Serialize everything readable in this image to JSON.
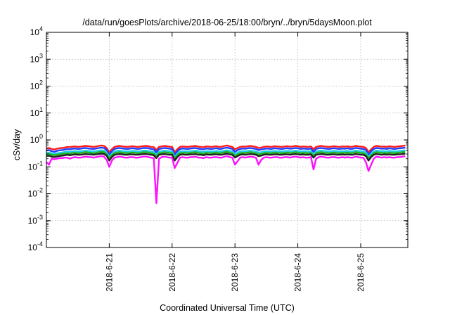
{
  "chart_data": {
    "type": "line",
    "title": "/data/run/goesPlots/archive/2018-06-25/18:00/bryn/../bryn/5daysMoon.plot",
    "xlabel": "Coordinated Universal Time (UTC)",
    "ylabel": "cSv/day",
    "yscale": "log",
    "ylim": [
      0.0001,
      10000
    ],
    "y_tick_labels": [
      {
        "base": "10",
        "exp": "-4"
      },
      {
        "base": "10",
        "exp": "-3"
      },
      {
        "base": "10",
        "exp": "-2"
      },
      {
        "base": "10",
        "exp": "-1"
      },
      {
        "base": "10",
        "exp": "0"
      },
      {
        "base": "10",
        "exp": "1"
      },
      {
        "base": "10",
        "exp": "2"
      },
      {
        "base": "10",
        "exp": "3"
      },
      {
        "base": "10",
        "exp": "4"
      }
    ],
    "xlim": [
      "2018-06-20 00:00",
      "2018-06-25 18:00"
    ],
    "x_tick_labels": [
      "2018-6-21",
      "2018-6-22",
      "2018-6-23",
      "2018-6-24",
      "2018-6-25"
    ],
    "grid": true,
    "legend": "none",
    "sampling_hours": 1,
    "series": [
      {
        "color": "#ff1a1a",
        "mean": 0.52,
        "values": [
          0.48,
          0.5,
          0.46,
          0.44,
          0.47,
          0.49,
          0.5,
          0.52,
          0.55,
          0.54,
          0.56,
          0.57,
          0.55,
          0.56,
          0.58,
          0.6,
          0.58,
          0.57,
          0.55,
          0.57,
          0.6,
          0.62,
          0.6,
          0.5,
          0.35,
          0.45,
          0.55,
          0.58,
          0.6,
          0.57,
          0.56,
          0.55,
          0.57,
          0.58,
          0.56,
          0.55,
          0.57,
          0.59,
          0.6,
          0.58,
          0.55,
          0.54,
          0.42,
          0.55,
          0.57,
          0.6,
          0.58,
          0.56,
          0.55,
          0.35,
          0.45,
          0.55,
          0.57,
          0.56,
          0.55,
          0.57,
          0.58,
          0.6,
          0.56,
          0.55,
          0.54,
          0.57,
          0.56,
          0.55,
          0.57,
          0.58,
          0.55,
          0.56,
          0.6,
          0.62,
          0.58,
          0.55,
          0.45,
          0.5,
          0.55,
          0.57,
          0.56,
          0.58,
          0.6,
          0.57,
          0.55,
          0.5,
          0.52,
          0.55,
          0.57,
          0.56,
          0.55,
          0.58,
          0.57,
          0.56,
          0.55,
          0.57,
          0.58,
          0.56,
          0.57,
          0.6,
          0.58,
          0.55,
          0.57,
          0.56,
          0.55,
          0.57,
          0.45,
          0.55,
          0.58,
          0.6,
          0.57,
          0.56,
          0.55,
          0.57,
          0.58,
          0.56,
          0.55,
          0.57,
          0.56,
          0.58,
          0.55,
          0.56,
          0.6,
          0.58,
          0.56,
          0.55,
          0.5,
          0.35,
          0.45,
          0.55,
          0.6,
          0.58,
          0.56,
          0.57,
          0.55,
          0.58,
          0.56,
          0.55,
          0.57,
          0.58,
          0.6,
          0.62
        ]
      },
      {
        "color": "#1f3cff",
        "mean": 0.42,
        "values": [
          0.4,
          0.42,
          0.38,
          0.36,
          0.39,
          0.41,
          0.42,
          0.44,
          0.46,
          0.45,
          0.47,
          0.48,
          0.46,
          0.47,
          0.49,
          0.5,
          0.48,
          0.47,
          0.46,
          0.48,
          0.5,
          0.52,
          0.5,
          0.42,
          0.28,
          0.38,
          0.46,
          0.49,
          0.5,
          0.48,
          0.47,
          0.46,
          0.48,
          0.49,
          0.47,
          0.46,
          0.48,
          0.5,
          0.5,
          0.49,
          0.46,
          0.45,
          0.34,
          0.46,
          0.48,
          0.5,
          0.49,
          0.47,
          0.46,
          0.28,
          0.38,
          0.46,
          0.48,
          0.47,
          0.46,
          0.48,
          0.49,
          0.5,
          0.47,
          0.46,
          0.45,
          0.48,
          0.47,
          0.46,
          0.48,
          0.49,
          0.46,
          0.47,
          0.5,
          0.52,
          0.49,
          0.46,
          0.36,
          0.42,
          0.46,
          0.48,
          0.47,
          0.49,
          0.5,
          0.48,
          0.46,
          0.42,
          0.44,
          0.46,
          0.48,
          0.47,
          0.46,
          0.49,
          0.48,
          0.47,
          0.46,
          0.48,
          0.49,
          0.47,
          0.48,
          0.5,
          0.49,
          0.46,
          0.48,
          0.47,
          0.46,
          0.48,
          0.36,
          0.46,
          0.49,
          0.5,
          0.48,
          0.47,
          0.46,
          0.48,
          0.49,
          0.47,
          0.46,
          0.48,
          0.47,
          0.49,
          0.46,
          0.47,
          0.5,
          0.49,
          0.47,
          0.46,
          0.42,
          0.28,
          0.38,
          0.46,
          0.5,
          0.49,
          0.47,
          0.48,
          0.46,
          0.49,
          0.47,
          0.46,
          0.48,
          0.49,
          0.5,
          0.52
        ]
      },
      {
        "color": "#20d0e0",
        "mean": 0.34,
        "values": [
          0.33,
          0.34,
          0.31,
          0.3,
          0.32,
          0.33,
          0.34,
          0.36,
          0.37,
          0.36,
          0.38,
          0.38,
          0.37,
          0.38,
          0.39,
          0.4,
          0.39,
          0.38,
          0.37,
          0.38,
          0.4,
          0.41,
          0.4,
          0.34,
          0.23,
          0.31,
          0.37,
          0.39,
          0.4,
          0.38,
          0.38,
          0.37,
          0.38,
          0.39,
          0.38,
          0.37,
          0.38,
          0.4,
          0.4,
          0.39,
          0.37,
          0.36,
          0.28,
          0.37,
          0.38,
          0.4,
          0.39,
          0.38,
          0.37,
          0.23,
          0.31,
          0.37,
          0.38,
          0.38,
          0.37,
          0.38,
          0.39,
          0.4,
          0.38,
          0.37,
          0.36,
          0.38,
          0.38,
          0.37,
          0.38,
          0.39,
          0.37,
          0.38,
          0.4,
          0.41,
          0.39,
          0.37,
          0.29,
          0.34,
          0.37,
          0.38,
          0.38,
          0.39,
          0.4,
          0.38,
          0.37,
          0.34,
          0.35,
          0.37,
          0.38,
          0.38,
          0.37,
          0.39,
          0.38,
          0.38,
          0.37,
          0.38,
          0.39,
          0.38,
          0.38,
          0.4,
          0.39,
          0.37,
          0.38,
          0.38,
          0.37,
          0.38,
          0.29,
          0.37,
          0.39,
          0.4,
          0.38,
          0.38,
          0.37,
          0.38,
          0.39,
          0.38,
          0.37,
          0.38,
          0.38,
          0.39,
          0.37,
          0.38,
          0.4,
          0.39,
          0.38,
          0.37,
          0.34,
          0.23,
          0.31,
          0.37,
          0.4,
          0.39,
          0.38,
          0.38,
          0.37,
          0.39,
          0.38,
          0.37,
          0.38,
          0.39,
          0.4,
          0.41
        ]
      },
      {
        "color": "#20b020",
        "mean": 0.3,
        "values": [
          0.29,
          0.3,
          0.28,
          0.27,
          0.28,
          0.29,
          0.3,
          0.31,
          0.32,
          0.31,
          0.33,
          0.33,
          0.32,
          0.33,
          0.34,
          0.35,
          0.34,
          0.33,
          0.32,
          0.33,
          0.35,
          0.36,
          0.35,
          0.3,
          0.2,
          0.27,
          0.32,
          0.34,
          0.35,
          0.33,
          0.33,
          0.32,
          0.33,
          0.34,
          0.33,
          0.32,
          0.33,
          0.35,
          0.35,
          0.34,
          0.32,
          0.31,
          0.24,
          0.32,
          0.33,
          0.35,
          0.34,
          0.33,
          0.32,
          0.2,
          0.27,
          0.32,
          0.33,
          0.33,
          0.32,
          0.33,
          0.34,
          0.35,
          0.33,
          0.32,
          0.31,
          0.33,
          0.33,
          0.32,
          0.33,
          0.34,
          0.32,
          0.33,
          0.35,
          0.36,
          0.34,
          0.32,
          0.25,
          0.29,
          0.32,
          0.33,
          0.33,
          0.34,
          0.35,
          0.33,
          0.32,
          0.29,
          0.3,
          0.32,
          0.33,
          0.33,
          0.32,
          0.34,
          0.33,
          0.33,
          0.32,
          0.33,
          0.34,
          0.33,
          0.33,
          0.35,
          0.34,
          0.32,
          0.33,
          0.33,
          0.32,
          0.33,
          0.25,
          0.32,
          0.34,
          0.35,
          0.33,
          0.33,
          0.32,
          0.33,
          0.34,
          0.33,
          0.32,
          0.33,
          0.33,
          0.34,
          0.32,
          0.33,
          0.35,
          0.34,
          0.33,
          0.32,
          0.29,
          0.2,
          0.27,
          0.32,
          0.35,
          0.34,
          0.33,
          0.33,
          0.32,
          0.34,
          0.33,
          0.32,
          0.33,
          0.34,
          0.35,
          0.36
        ]
      },
      {
        "color": "#222222",
        "mean": 0.26,
        "values": [
          0.25,
          0.26,
          0.24,
          0.23,
          0.24,
          0.25,
          0.26,
          0.27,
          0.28,
          0.27,
          0.28,
          0.29,
          0.28,
          0.28,
          0.29,
          0.3,
          0.29,
          0.29,
          0.28,
          0.29,
          0.3,
          0.31,
          0.3,
          0.26,
          0.17,
          0.23,
          0.28,
          0.29,
          0.3,
          0.29,
          0.28,
          0.28,
          0.29,
          0.29,
          0.28,
          0.28,
          0.29,
          0.3,
          0.3,
          0.29,
          0.28,
          0.27,
          0.21,
          0.28,
          0.29,
          0.3,
          0.29,
          0.28,
          0.28,
          0.17,
          0.23,
          0.28,
          0.29,
          0.28,
          0.28,
          0.29,
          0.29,
          0.3,
          0.28,
          0.28,
          0.27,
          0.29,
          0.28,
          0.28,
          0.29,
          0.29,
          0.28,
          0.28,
          0.3,
          0.31,
          0.29,
          0.28,
          0.22,
          0.25,
          0.28,
          0.29,
          0.28,
          0.29,
          0.3,
          0.29,
          0.28,
          0.25,
          0.26,
          0.28,
          0.29,
          0.28,
          0.28,
          0.29,
          0.29,
          0.28,
          0.28,
          0.29,
          0.29,
          0.28,
          0.29,
          0.3,
          0.29,
          0.28,
          0.29,
          0.28,
          0.28,
          0.29,
          0.22,
          0.28,
          0.29,
          0.3,
          0.29,
          0.28,
          0.28,
          0.29,
          0.29,
          0.28,
          0.28,
          0.29,
          0.28,
          0.29,
          0.28,
          0.28,
          0.3,
          0.29,
          0.28,
          0.28,
          0.25,
          0.17,
          0.23,
          0.28,
          0.3,
          0.29,
          0.28,
          0.29,
          0.28,
          0.29,
          0.28,
          0.28,
          0.29,
          0.29,
          0.3,
          0.31
        ]
      },
      {
        "color": "#ff10ff",
        "mean": 0.21,
        "values": [
          0.15,
          0.12,
          0.2,
          0.19,
          0.2,
          0.21,
          0.21,
          0.22,
          0.22,
          0.2,
          0.22,
          0.23,
          0.22,
          0.22,
          0.23,
          0.24,
          0.23,
          0.23,
          0.22,
          0.23,
          0.24,
          0.25,
          0.24,
          0.18,
          0.1,
          0.17,
          0.22,
          0.23,
          0.24,
          0.23,
          0.22,
          0.22,
          0.23,
          0.23,
          0.22,
          0.22,
          0.23,
          0.24,
          0.24,
          0.23,
          0.22,
          0.21,
          0.0045,
          0.2,
          0.23,
          0.24,
          0.23,
          0.22,
          0.22,
          0.09,
          0.14,
          0.22,
          0.23,
          0.22,
          0.22,
          0.23,
          0.23,
          0.24,
          0.22,
          0.22,
          0.21,
          0.23,
          0.22,
          0.22,
          0.23,
          0.23,
          0.22,
          0.22,
          0.24,
          0.25,
          0.23,
          0.22,
          0.12,
          0.16,
          0.22,
          0.23,
          0.22,
          0.23,
          0.24,
          0.23,
          0.22,
          0.12,
          0.18,
          0.22,
          0.23,
          0.22,
          0.22,
          0.23,
          0.23,
          0.22,
          0.22,
          0.23,
          0.23,
          0.22,
          0.23,
          0.24,
          0.23,
          0.22,
          0.23,
          0.22,
          0.22,
          0.23,
          0.08,
          0.2,
          0.23,
          0.24,
          0.23,
          0.22,
          0.22,
          0.23,
          0.23,
          0.22,
          0.22,
          0.23,
          0.22,
          0.23,
          0.22,
          0.22,
          0.24,
          0.23,
          0.22,
          0.22,
          0.15,
          0.07,
          0.12,
          0.2,
          0.24,
          0.23,
          0.22,
          0.23,
          0.22,
          0.23,
          0.22,
          0.22,
          0.23,
          0.23,
          0.24,
          0.25
        ]
      }
    ]
  }
}
